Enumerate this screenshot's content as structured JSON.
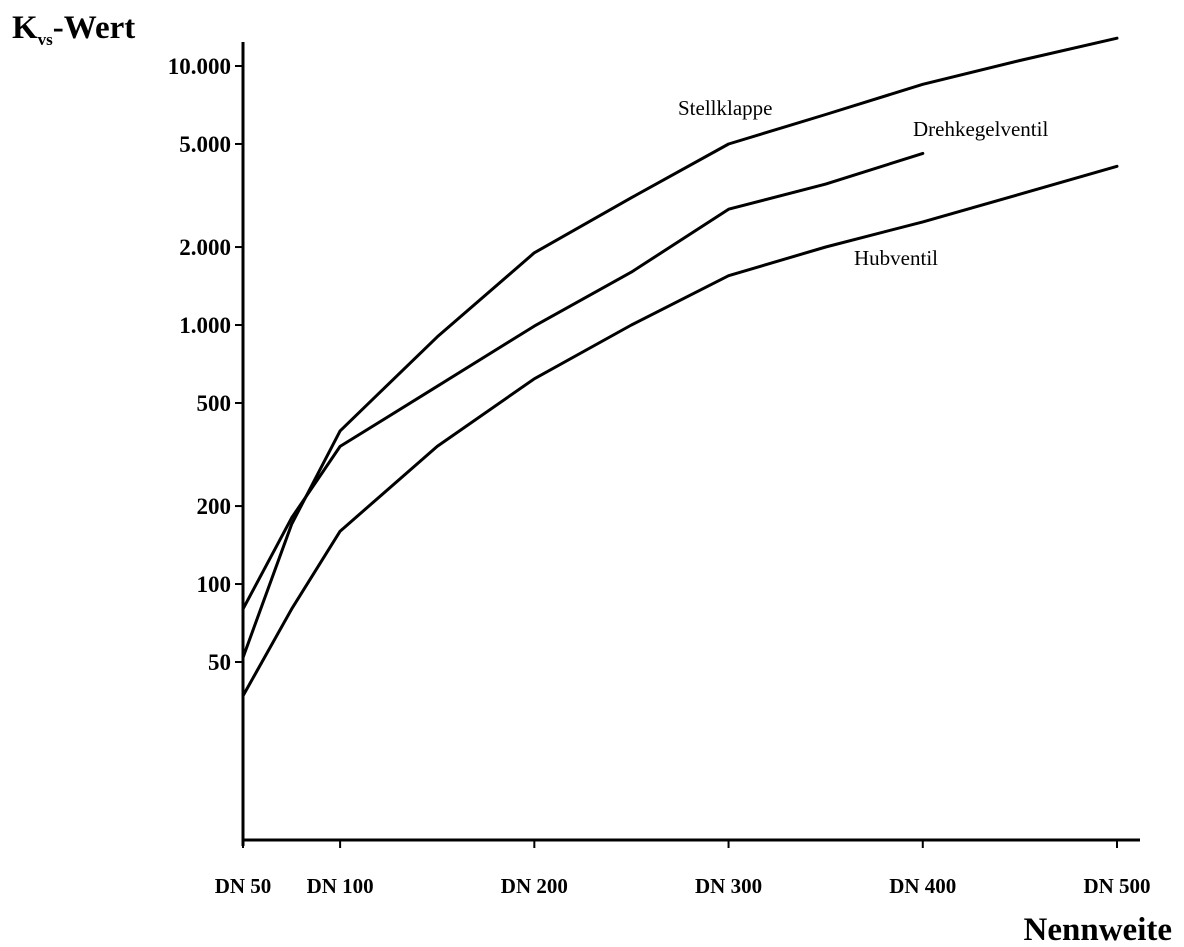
{
  "chart_data": {
    "type": "line",
    "title": "",
    "ylabel": {
      "main": "K",
      "sub": "vs",
      "suffix": "-Wert"
    },
    "xlabel": "Nennweite",
    "x_ticks": [
      "DN 50",
      "DN 100",
      "DN 200",
      "DN 300",
      "DN 400",
      "DN 500"
    ],
    "x_tick_values": [
      50,
      100,
      200,
      300,
      400,
      500
    ],
    "y_scale": "log",
    "y_ticks": [
      50,
      100,
      200,
      500,
      1000,
      2000,
      5000,
      10000
    ],
    "y_tick_labels": [
      "50",
      "100",
      "200",
      "500",
      "1.000",
      "2.000",
      "5.000",
      "10.000"
    ],
    "xlim": [
      50,
      520
    ],
    "ylim": [
      10,
      14000
    ],
    "grid": false,
    "series": [
      {
        "name": "Stellklappe",
        "x": [
          50,
          75,
          100,
          150,
          200,
          250,
          300,
          350,
          400,
          450,
          500
        ],
        "y": [
          52,
          170,
          390,
          900,
          1900,
          3100,
          5000,
          6500,
          8500,
          10500,
          12800
        ]
      },
      {
        "name": "Drehkegelventil",
        "x": [
          50,
          75,
          100,
          150,
          200,
          250,
          300,
          350,
          400
        ],
        "y": [
          80,
          180,
          340,
          580,
          990,
          1600,
          2800,
          3500,
          4600
        ]
      },
      {
        "name": "Hubventil",
        "x": [
          50,
          75,
          100,
          150,
          200,
          250,
          300,
          350,
          400,
          450,
          500
        ],
        "y": [
          37,
          80,
          160,
          340,
          620,
          1000,
          1550,
          2000,
          2500,
          3200,
          4100
        ]
      }
    ]
  }
}
